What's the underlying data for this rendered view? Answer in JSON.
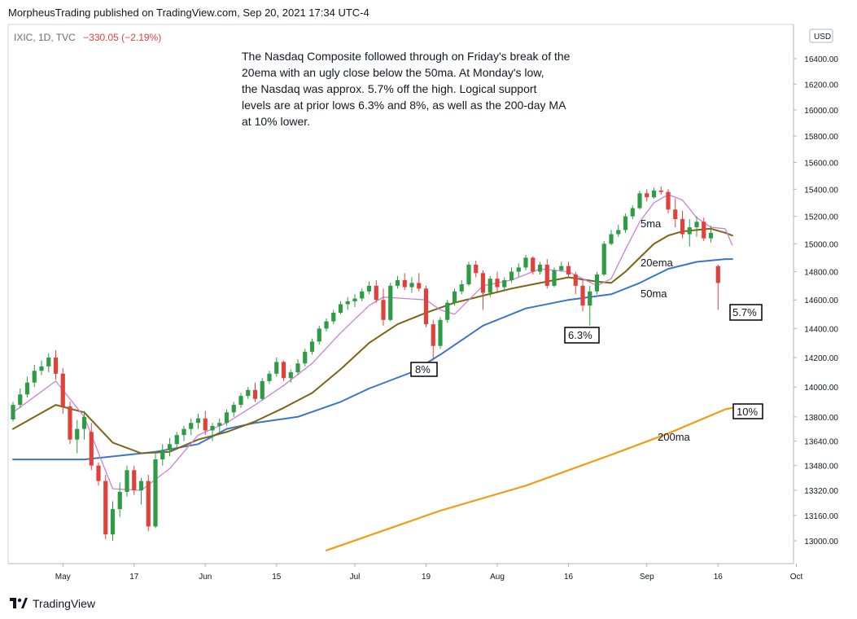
{
  "header": {
    "published": "MorpheusTrading published on TradingView.com, Sep 20, 2021 17:34 UTC-4"
  },
  "footer": {
    "brand": "TradingView"
  },
  "colors": {
    "up": "#26a69a",
    "upCandle": "#2e9b45",
    "down": "#e0413b",
    "ma5": "#cc80d8",
    "ema20": "#7b6513",
    "ma50": "#3a76c8",
    "ma200": "#f59a14"
  },
  "chart_data": {
    "type": "candlestick",
    "symbol_line": {
      "symbol": "IXIC, 1D, TVC",
      "change": "−330.05 (−2.19%)"
    },
    "currency": "USD",
    "y_ticks": [
      "16400.00",
      "16200.00",
      "16000.00",
      "15800.00",
      "15600.00",
      "15400.00",
      "15200.00",
      "15000.00",
      "14800.00",
      "14600.00",
      "14400.00",
      "14200.00",
      "14000.00",
      "13800.00",
      "13640.00",
      "13480.00",
      "13320.00",
      "13160.00",
      "13000.00"
    ],
    "y_top_partial": "16",
    "x_ticks": [
      "May",
      "17",
      "Jun",
      "15",
      "Jul",
      "19",
      "Aug",
      "16",
      "Sep",
      "16",
      "Oct"
    ],
    "annotation": [
      "The Nasdaq Composite followed through on Friday's break of the",
      "20ema with an ugly close below the 50ma.  At Monday's low,",
      "the Nasdaq was approx. 5.7% off the high.  Logical support",
      "levels are at prior lows 6.3% and 8%, as well as the 200-day MA",
      "at 10% lower."
    ],
    "labels": {
      "ma5": "5ma",
      "ema20": "20ema",
      "ma50": "50ma",
      "ma200": "200ma",
      "box_8": "8%",
      "box_63": "6.3%",
      "box_57": "5.7%",
      "box_10": "10%"
    },
    "candles": [
      [
        13783,
        13900,
        13770,
        13880
      ],
      [
        13880,
        13990,
        13860,
        13950
      ],
      [
        13950,
        14070,
        13930,
        14030
      ],
      [
        14030,
        14150,
        14000,
        14110
      ],
      [
        14110,
        14180,
        14080,
        14140
      ],
      [
        14140,
        14230,
        14100,
        14200
      ],
      [
        14200,
        14250,
        14050,
        14090
      ],
      [
        14090,
        14130,
        13820,
        13870
      ],
      [
        13870,
        13900,
        13620,
        13650
      ],
      [
        13650,
        13780,
        13560,
        13720
      ],
      [
        13720,
        13840,
        13650,
        13800
      ],
      [
        13700,
        13760,
        13450,
        13480
      ],
      [
        13480,
        13500,
        13350,
        13380
      ],
      [
        13380,
        13420,
        13010,
        13040
      ],
      [
        13040,
        13250,
        13000,
        13200
      ],
      [
        13200,
        13370,
        13150,
        13310
      ],
      [
        13310,
        13480,
        13280,
        13450
      ],
      [
        13450,
        13480,
        13290,
        13320
      ],
      [
        13320,
        13400,
        13230,
        13380
      ],
      [
        13380,
        13420,
        13060,
        13090
      ],
      [
        13090,
        13560,
        13080,
        13520
      ],
      [
        13520,
        13620,
        13480,
        13580
      ],
      [
        13580,
        13660,
        13540,
        13620
      ],
      [
        13620,
        13700,
        13590,
        13680
      ],
      [
        13680,
        13740,
        13640,
        13720
      ],
      [
        13720,
        13790,
        13680,
        13760
      ],
      [
        13760,
        13820,
        13720,
        13790
      ],
      [
        13790,
        13840,
        13680,
        13710
      ],
      [
        13710,
        13760,
        13640,
        13740
      ],
      [
        13740,
        13790,
        13700,
        13760
      ],
      [
        13760,
        13850,
        13740,
        13830
      ],
      [
        13830,
        13900,
        13800,
        13880
      ],
      [
        13880,
        13960,
        13860,
        13940
      ],
      [
        13940,
        14000,
        13920,
        13980
      ],
      [
        13980,
        14030,
        13900,
        13920
      ],
      [
        13920,
        14060,
        13910,
        14040
      ],
      [
        14040,
        14110,
        14020,
        14090
      ],
      [
        14090,
        14200,
        14070,
        14170
      ],
      [
        14170,
        14180,
        14040,
        14060
      ],
      [
        14060,
        14120,
        14030,
        14100
      ],
      [
        14100,
        14190,
        14080,
        14160
      ],
      [
        14160,
        14260,
        14140,
        14240
      ],
      [
        14240,
        14330,
        14220,
        14310
      ],
      [
        14310,
        14420,
        14290,
        14400
      ],
      [
        14400,
        14470,
        14380,
        14450
      ],
      [
        14450,
        14530,
        14430,
        14510
      ],
      [
        14510,
        14590,
        14500,
        14570
      ],
      [
        14570,
        14620,
        14530,
        14590
      ],
      [
        14590,
        14640,
        14550,
        14610
      ],
      [
        14610,
        14680,
        14590,
        14660
      ],
      [
        14660,
        14730,
        14640,
        14700
      ],
      [
        14700,
        14740,
        14580,
        14600
      ],
      [
        14600,
        14680,
        14420,
        14460
      ],
      [
        14460,
        14720,
        14450,
        14700
      ],
      [
        14700,
        14770,
        14680,
        14740
      ],
      [
        14740,
        14790,
        14670,
        14690
      ],
      [
        14690,
        14760,
        14650,
        14720
      ],
      [
        14720,
        14790,
        14660,
        14680
      ],
      [
        14680,
        14700,
        14410,
        14430
      ],
      [
        14430,
        14460,
        14180,
        14280
      ],
      [
        14280,
        14480,
        14260,
        14460
      ],
      [
        14460,
        14600,
        14440,
        14580
      ],
      [
        14580,
        14680,
        14560,
        14660
      ],
      [
        14660,
        14740,
        14640,
        14710
      ],
      [
        14710,
        14870,
        14700,
        14850
      ],
      [
        14850,
        14880,
        14760,
        14790
      ],
      [
        14790,
        14810,
        14530,
        14650
      ],
      [
        14650,
        14770,
        14620,
        14750
      ],
      [
        14750,
        14800,
        14660,
        14690
      ],
      [
        14690,
        14760,
        14670,
        14740
      ],
      [
        14740,
        14830,
        14720,
        14800
      ],
      [
        14800,
        14860,
        14760,
        14830
      ],
      [
        14830,
        14920,
        14810,
        14900
      ],
      [
        14900,
        14910,
        14780,
        14800
      ],
      [
        14800,
        14870,
        14780,
        14850
      ],
      [
        14850,
        14890,
        14680,
        14700
      ],
      [
        14700,
        14830,
        14690,
        14810
      ],
      [
        14810,
        14870,
        14800,
        14840
      ],
      [
        14840,
        14870,
        14760,
        14780
      ],
      [
        14780,
        14800,
        14640,
        14700
      ],
      [
        14700,
        14740,
        14520,
        14560
      ],
      [
        14560,
        14700,
        14420,
        14660
      ],
      [
        14660,
        14800,
        14640,
        14780
      ],
      [
        14780,
        15020,
        14770,
        15000
      ],
      [
        15000,
        15100,
        14990,
        15070
      ],
      [
        15070,
        15140,
        15050,
        15100
      ],
      [
        15100,
        15220,
        15080,
        15200
      ],
      [
        15200,
        15280,
        15180,
        15260
      ],
      [
        15260,
        15390,
        15250,
        15370
      ],
      [
        15370,
        15400,
        15310,
        15340
      ],
      [
        15340,
        15410,
        15330,
        15390
      ],
      [
        15390,
        15420,
        15360,
        15380
      ],
      [
        15380,
        15400,
        15220,
        15250
      ],
      [
        15250,
        15330,
        15120,
        15180
      ],
      [
        15180,
        15240,
        15040,
        15070
      ],
      [
        15070,
        15180,
        14980,
        15120
      ],
      [
        15120,
        15200,
        15050,
        15160
      ],
      [
        15160,
        15190,
        15020,
        15040
      ],
      [
        15040,
        15130,
        15010,
        15080
      ],
      [
        14840,
        14850,
        14530,
        14720
      ]
    ],
    "ma5": [
      [
        0,
        13830
      ],
      [
        6,
        14040
      ],
      [
        10,
        13800
      ],
      [
        14,
        13330
      ],
      [
        18,
        13320
      ],
      [
        22,
        13460
      ],
      [
        26,
        13680
      ],
      [
        30,
        13760
      ],
      [
        34,
        13880
      ],
      [
        38,
        14010
      ],
      [
        42,
        14160
      ],
      [
        46,
        14370
      ],
      [
        50,
        14560
      ],
      [
        52,
        14620
      ],
      [
        55,
        14610
      ],
      [
        58,
        14600
      ],
      [
        60,
        14530
      ],
      [
        62,
        14500
      ],
      [
        66,
        14700
      ],
      [
        70,
        14740
      ],
      [
        74,
        14820
      ],
      [
        78,
        14800
      ],
      [
        82,
        14700
      ],
      [
        84,
        14750
      ],
      [
        86,
        14960
      ],
      [
        88,
        15160
      ],
      [
        90,
        15300
      ],
      [
        92,
        15360
      ],
      [
        94,
        15320
      ],
      [
        96,
        15190
      ],
      [
        98,
        15120
      ],
      [
        100,
        15110
      ],
      [
        101,
        14990
      ]
    ],
    "ema20": [
      [
        0,
        13720
      ],
      [
        6,
        13880
      ],
      [
        10,
        13830
      ],
      [
        14,
        13630
      ],
      [
        18,
        13560
      ],
      [
        22,
        13570
      ],
      [
        26,
        13650
      ],
      [
        30,
        13700
      ],
      [
        34,
        13770
      ],
      [
        38,
        13860
      ],
      [
        42,
        13960
      ],
      [
        46,
        14120
      ],
      [
        50,
        14300
      ],
      [
        54,
        14430
      ],
      [
        58,
        14510
      ],
      [
        62,
        14580
      ],
      [
        66,
        14630
      ],
      [
        70,
        14680
      ],
      [
        74,
        14720
      ],
      [
        78,
        14760
      ],
      [
        82,
        14730
      ],
      [
        84,
        14720
      ],
      [
        86,
        14800
      ],
      [
        88,
        14900
      ],
      [
        90,
        15000
      ],
      [
        92,
        15060
      ],
      [
        94,
        15090
      ],
      [
        96,
        15100
      ],
      [
        98,
        15110
      ],
      [
        100,
        15080
      ],
      [
        101,
        15060
      ]
    ],
    "ma50": [
      [
        0,
        13520
      ],
      [
        10,
        13520
      ],
      [
        20,
        13570
      ],
      [
        26,
        13620
      ],
      [
        30,
        13720
      ],
      [
        34,
        13760
      ],
      [
        40,
        13800
      ],
      [
        46,
        13900
      ],
      [
        50,
        13990
      ],
      [
        56,
        14100
      ],
      [
        60,
        14220
      ],
      [
        66,
        14420
      ],
      [
        72,
        14540
      ],
      [
        78,
        14600
      ],
      [
        84,
        14640
      ],
      [
        88,
        14720
      ],
      [
        92,
        14820
      ],
      [
        96,
        14870
      ],
      [
        100,
        14890
      ],
      [
        101,
        14890
      ]
    ],
    "ma200": [
      [
        44,
        12940
      ],
      [
        60,
        13190
      ],
      [
        72,
        13350
      ],
      [
        84,
        13550
      ],
      [
        92,
        13690
      ],
      [
        100,
        13850
      ],
      [
        101,
        13860
      ]
    ]
  }
}
